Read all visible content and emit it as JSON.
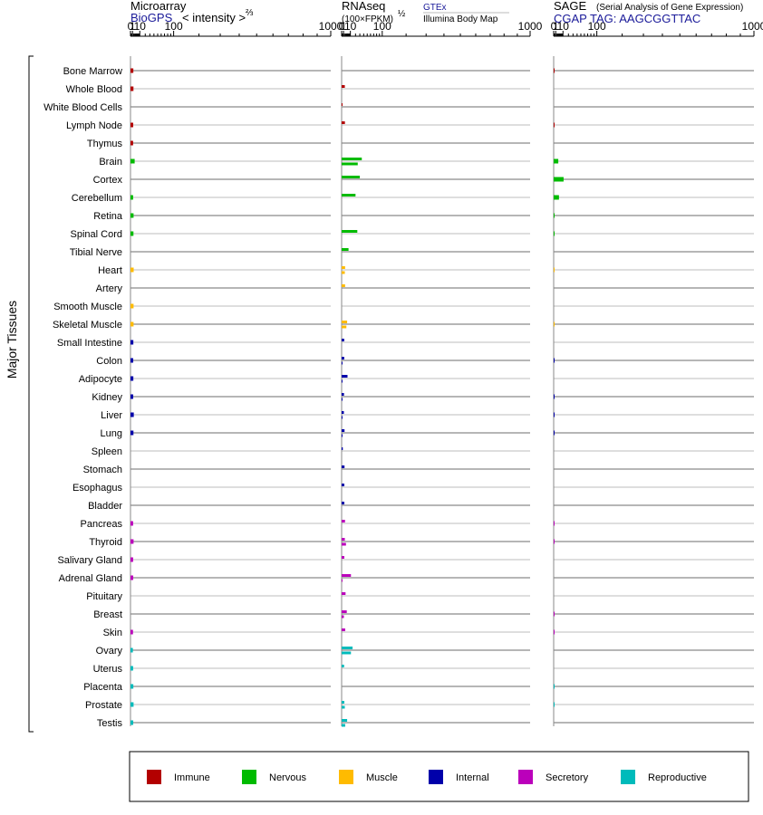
{
  "chart_data": {
    "type": "bar",
    "orientation": "horizontal",
    "y_axis_label": "Major Tissues",
    "categories": [
      "Bone Marrow",
      "Whole Blood",
      "White Blood Cells",
      "Lymph Node",
      "Thymus",
      "Brain",
      "Cortex",
      "Cerebellum",
      "Retina",
      "Spinal Cord",
      "Tibial Nerve",
      "Heart",
      "Artery",
      "Smooth Muscle",
      "Skeletal Muscle",
      "Small Intestine",
      "Colon",
      "Adipocyte",
      "Kidney",
      "Liver",
      "Lung",
      "Spleen",
      "Stomach",
      "Esophagus",
      "Bladder",
      "Pancreas",
      "Thyroid",
      "Salivary Gland",
      "Adrenal Gland",
      "Pituitary",
      "Breast",
      "Skin",
      "Ovary",
      "Uterus",
      "Placenta",
      "Prostate",
      "Testis"
    ],
    "groups": [
      "Immune",
      "Immune",
      "Immune",
      "Immune",
      "Immune",
      "Nervous",
      "Nervous",
      "Nervous",
      "Nervous",
      "Nervous",
      "Nervous",
      "Muscle",
      "Muscle",
      "Muscle",
      "Muscle",
      "Internal",
      "Internal",
      "Internal",
      "Internal",
      "Internal",
      "Internal",
      "Internal",
      "Internal",
      "Internal",
      "Internal",
      "Secretory",
      "Secretory",
      "Secretory",
      "Secretory",
      "Secretory",
      "Secretory",
      "Secretory",
      "Reproductive",
      "Reproductive",
      "Reproductive",
      "Reproductive",
      "Reproductive"
    ],
    "group_colors": {
      "Immune": "#b30000",
      "Nervous": "#00bb00",
      "Muscle": "#ffbb00",
      "Internal": "#0000aa",
      "Secretory": "#bb00bb",
      "Reproductive": "#00bbbb"
    },
    "x_scale": "power-2/3",
    "x_ticks": [
      {
        "value": 0,
        "label": "0"
      },
      {
        "value": 1,
        "label": "1"
      },
      {
        "value": 10,
        "label": "10"
      },
      {
        "value": 100,
        "label": "100"
      },
      {
        "value": 1000,
        "label": "1000"
      }
    ],
    "xlim": [
      0,
      1000
    ],
    "panels": [
      {
        "title": "Microarray",
        "subtitle_link": "BioGPS",
        "axis_label": "< intensity >",
        "axis_label_exp": "⅔",
        "series": [
          {
            "values": [
              1.7,
              1.8,
              null,
              1.6,
              1.5,
              3.0,
              null,
              1.5,
              1.9,
              1.8,
              null,
              2.0,
              null,
              1.9,
              1.9,
              1.7,
              1.6,
              1.7,
              1.6,
              2.1,
              1.8,
              null,
              null,
              null,
              null,
              1.5,
              1.9,
              1.5,
              1.6,
              null,
              null,
              1.4,
              1.3,
              1.5,
              1.7,
              1.9,
              1.6
            ]
          }
        ]
      },
      {
        "title": "RNAseq",
        "axis_label": "(100×FPKM)",
        "axis_label_exp": "½",
        "source_links": [
          "GTEx",
          "Illumina Body Map"
        ],
        "series": [
          {
            "name": "GTEx",
            "values": [
              null,
              2.2,
              0.1,
              2.3,
              null,
              35,
              30,
              20,
              null,
              24,
              7,
              2.5,
              2.5,
              null,
              5,
              1.6,
              1.6,
              5.5,
              1.4,
              1.3,
              1.9,
              0.5,
              1.9,
              1.7,
              1.7,
              2.4,
              2.2,
              1.7,
              11,
              3,
              4.5,
              2.6,
              14,
              1.5,
              null,
              1.7,
              5
            ]
          },
          {
            "name": "Illumina Body Map",
            "values": [
              null,
              null,
              null,
              null,
              null,
              25,
              null,
              null,
              null,
              null,
              null,
              2.2,
              null,
              null,
              4,
              null,
              0.1,
              0.1,
              0.1,
              0.1,
              0.1,
              null,
              null,
              null,
              null,
              null,
              3.5,
              null,
              0.1,
              null,
              1.3,
              null,
              11,
              null,
              null,
              2.2,
              2.6
            ]
          }
        ]
      },
      {
        "title": "SAGE",
        "title_note": "(Serial Analysis of Gene Expression)",
        "subtitle_link": "CGAP TAG: AAGCGGTTAC",
        "series": [
          {
            "values": [
              0.01,
              null,
              null,
              0.01,
              null,
              3.5,
              11,
              4.3,
              0.02,
              0.03,
              null,
              0.01,
              null,
              null,
              0.01,
              null,
              0.03,
              null,
              0.02,
              0.02,
              0.02,
              null,
              null,
              null,
              null,
              0.02,
              0.02,
              null,
              null,
              null,
              0.02,
              0.02,
              null,
              null,
              0.02,
              0.02,
              null
            ]
          }
        ]
      }
    ],
    "legend": [
      "Immune",
      "Nervous",
      "Muscle",
      "Internal",
      "Secretory",
      "Reproductive"
    ],
    "legend_placement": "bottom"
  }
}
